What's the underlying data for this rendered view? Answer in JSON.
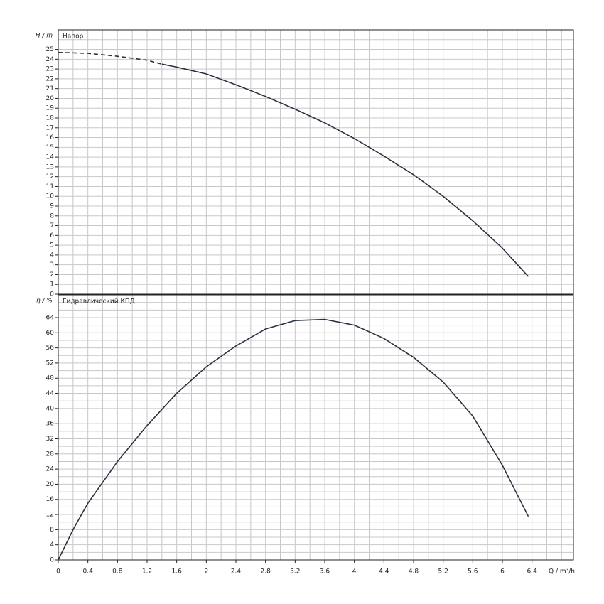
{
  "chart_data": [
    {
      "type": "line",
      "title": "Напор",
      "ylabel": "H / m",
      "xlim": [
        0,
        6.96
      ],
      "ylim": [
        0,
        27
      ],
      "xgrid": [
        0,
        0.2,
        0.4,
        0.6,
        0.8,
        1,
        1.2,
        1.4,
        1.6,
        1.8,
        2,
        2.2,
        2.4,
        2.6,
        2.8,
        3,
        3.2,
        3.4,
        3.6,
        3.8,
        4,
        4.2,
        4.4,
        4.6,
        4.8,
        5,
        5.2,
        5.4,
        5.6,
        5.8,
        6,
        6.2,
        6.4,
        6.6,
        6.8
      ],
      "yticks": [
        0,
        1,
        2,
        3,
        4,
        5,
        6,
        7,
        8,
        9,
        10,
        11,
        12,
        13,
        14,
        15,
        16,
        17,
        18,
        19,
        20,
        21,
        22,
        23,
        24,
        25
      ],
      "ygrid": [
        0,
        1,
        2,
        3,
        4,
        5,
        6,
        7,
        8,
        9,
        10,
        11,
        12,
        13,
        14,
        15,
        16,
        17,
        18,
        19,
        20,
        21,
        22,
        23,
        24,
        25,
        26
      ],
      "series": [
        {
          "color": "#2a3142",
          "style": "dashed",
          "x": [
            0,
            0.4,
            0.8,
            1.2,
            1.4
          ],
          "values": [
            24.7,
            24.6,
            24.3,
            23.9,
            23.5
          ]
        },
        {
          "color": "#2a3142",
          "style": "solid",
          "x": [
            1.4,
            1.6,
            2,
            2.4,
            2.8,
            3.2,
            3.6,
            4,
            4.4,
            4.8,
            5.2,
            5.6,
            6,
            6.35
          ],
          "values": [
            23.5,
            23.2,
            22.5,
            21.4,
            20.2,
            18.9,
            17.5,
            15.9,
            14.1,
            12.2,
            10.0,
            7.5,
            4.7,
            1.8
          ]
        }
      ]
    },
    {
      "type": "line",
      "title": "Гидравлический КПД",
      "ylabel": "η / %",
      "xlabel": "Q / m³/h",
      "xlim": [
        0,
        6.96
      ],
      "ylim": [
        0,
        70
      ],
      "xticks": [
        0,
        0.4,
        0.8,
        1.2,
        1.6,
        2,
        2.4,
        2.8,
        3.2,
        3.6,
        4,
        4.4,
        4.8,
        5.2,
        5.6,
        6,
        6.4
      ],
      "xgrid": [
        0,
        0.2,
        0.4,
        0.6,
        0.8,
        1,
        1.2,
        1.4,
        1.6,
        1.8,
        2,
        2.2,
        2.4,
        2.6,
        2.8,
        3,
        3.2,
        3.4,
        3.6,
        3.8,
        4,
        4.2,
        4.4,
        4.6,
        4.8,
        5,
        5.2,
        5.4,
        5.6,
        5.8,
        6,
        6.2,
        6.4,
        6.6,
        6.8
      ],
      "yticks": [
        0,
        4,
        8,
        12,
        16,
        20,
        24,
        28,
        32,
        36,
        40,
        44,
        48,
        52,
        56,
        60,
        64
      ],
      "ygrid": [
        0,
        2,
        4,
        6,
        8,
        10,
        12,
        14,
        16,
        18,
        20,
        22,
        24,
        26,
        28,
        30,
        32,
        34,
        36,
        38,
        40,
        42,
        44,
        46,
        48,
        50,
        52,
        54,
        56,
        58,
        60,
        62,
        64,
        66,
        68
      ],
      "series": [
        {
          "color": "#2a3142",
          "style": "solid",
          "x": [
            0,
            0.2,
            0.4,
            0.8,
            1.2,
            1.6,
            2,
            2.4,
            2.8,
            3.2,
            3.6,
            4,
            4.4,
            4.8,
            5.2,
            5.6,
            6,
            6.35
          ],
          "values": [
            0,
            8,
            15,
            26,
            35.5,
            44,
            51,
            56.5,
            61,
            63.2,
            63.5,
            62,
            58.5,
            53.5,
            47,
            38,
            25,
            11.5
          ]
        }
      ]
    }
  ]
}
